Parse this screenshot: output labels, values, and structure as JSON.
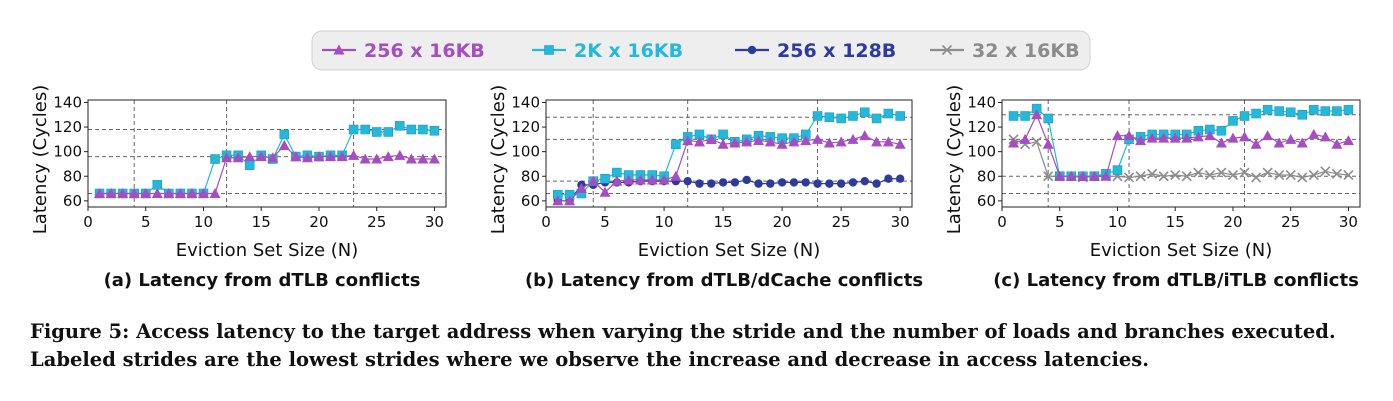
{
  "legend": {
    "items": [
      {
        "label": "256 x 16KB",
        "color": "#a64dc1",
        "marker": "triangle"
      },
      {
        "label": "2K x 16KB",
        "color": "#22b9dc",
        "marker": "square"
      },
      {
        "label": "256 x 128B",
        "color": "#2d3a9e",
        "marker": "circle"
      },
      {
        "label": "32 x 16KB",
        "color": "#8c8c8c",
        "marker": "x"
      }
    ]
  },
  "caption": {
    "label": "Figure 5:",
    "text": "Access latency to the target address when varying the stride and the number of loads and branches executed. Labeled strides are the lowest strides where we observe the increase and decrease in access latencies."
  },
  "chart_data": [
    {
      "type": "line",
      "panel_label": "(a) Latency from dTLB conflicts",
      "xlabel": "Eviction Set Size (N)",
      "ylabel": "Latency (Cycles)",
      "xlim": [
        0,
        31
      ],
      "ylim": [
        55,
        142
      ],
      "xticks": [
        0,
        5,
        10,
        15,
        20,
        25,
        30
      ],
      "yticks": [
        60,
        80,
        100,
        120,
        140
      ],
      "vlines": [
        4,
        12,
        23
      ],
      "hlines": [
        66,
        96,
        118
      ],
      "series": [
        {
          "name": "256 x 16KB",
          "x": [
            1,
            2,
            3,
            4,
            5,
            6,
            7,
            8,
            9,
            10,
            11,
            12,
            13,
            14,
            15,
            16,
            17,
            18,
            19,
            20,
            21,
            22,
            23,
            24,
            25,
            26,
            27,
            28,
            29,
            30
          ],
          "values": [
            66,
            66,
            66,
            66,
            66,
            66,
            66,
            66,
            66,
            66,
            66,
            95,
            95,
            96,
            96,
            95,
            105,
            96,
            95,
            96,
            96,
            96,
            97,
            94,
            94,
            96,
            97,
            94,
            94,
            94
          ]
        },
        {
          "name": "2K x 16KB",
          "x": [
            1,
            2,
            3,
            4,
            5,
            6,
            7,
            8,
            9,
            10,
            11,
            12,
            13,
            14,
            15,
            16,
            17,
            18,
            19,
            20,
            21,
            22,
            23,
            24,
            25,
            26,
            27,
            28,
            29,
            30
          ],
          "values": [
            66,
            66,
            66,
            66,
            66,
            73,
            66,
            66,
            66,
            66,
            94,
            97,
            97,
            89,
            97,
            94,
            114,
            96,
            97,
            96,
            97,
            97,
            118,
            118,
            116,
            116,
            121,
            118,
            118,
            117
          ]
        }
      ]
    },
    {
      "type": "line",
      "panel_label": "(b) Latency from dTLB/dCache conflicts",
      "xlabel": "Eviction Set Size (N)",
      "ylabel": "Latency (Cycles)",
      "xlim": [
        0,
        31
      ],
      "ylim": [
        55,
        142
      ],
      "xticks": [
        0,
        5,
        10,
        15,
        20,
        25,
        30
      ],
      "yticks": [
        60,
        80,
        100,
        120,
        140
      ],
      "vlines": [
        4,
        12,
        23
      ],
      "hlines": [
        66,
        76,
        110,
        128
      ],
      "series": [
        {
          "name": "256 x 16KB",
          "x": [
            1,
            2,
            3,
            4,
            5,
            6,
            7,
            8,
            9,
            10,
            11,
            12,
            13,
            14,
            15,
            16,
            17,
            18,
            19,
            20,
            21,
            22,
            23,
            24,
            25,
            26,
            27,
            28,
            29,
            30
          ],
          "values": [
            60,
            60,
            70,
            76,
            67,
            76,
            77,
            77,
            77,
            77,
            80,
            109,
            108,
            110,
            106,
            107,
            108,
            109,
            108,
            106,
            108,
            109,
            110,
            107,
            108,
            110,
            113,
            108,
            108,
            106
          ]
        },
        {
          "name": "2K x 16KB",
          "x": [
            1,
            2,
            3,
            4,
            5,
            6,
            7,
            8,
            9,
            10,
            11,
            12,
            13,
            14,
            15,
            16,
            17,
            18,
            19,
            20,
            21,
            22,
            23,
            24,
            25,
            26,
            27,
            28,
            29,
            30
          ],
          "values": [
            65,
            65,
            66,
            76,
            78,
            83,
            81,
            81,
            81,
            80,
            106,
            112,
            114,
            110,
            114,
            108,
            110,
            113,
            112,
            111,
            111,
            114,
            129,
            128,
            127,
            129,
            132,
            127,
            131,
            129
          ]
        },
        {
          "name": "256 x 128B",
          "x": [
            1,
            2,
            3,
            4,
            5,
            6,
            7,
            8,
            9,
            10,
            11,
            12,
            13,
            14,
            15,
            16,
            17,
            18,
            19,
            20,
            21,
            22,
            23,
            24,
            25,
            26,
            27,
            28,
            29,
            30
          ],
          "values": [
            60,
            60,
            73,
            73,
            75,
            75,
            75,
            76,
            76,
            76,
            76,
            76,
            74,
            74,
            75,
            75,
            77,
            74,
            74,
            75,
            75,
            75,
            74,
            74,
            74,
            75,
            76,
            74,
            78,
            78
          ]
        }
      ]
    },
    {
      "type": "line",
      "panel_label": "(c) Latency from dTLB/iTLB conflicts",
      "xlabel": "Eviction Set Size (N)",
      "ylabel": "Latency (Cycles)",
      "xlim": [
        0,
        31
      ],
      "ylim": [
        55,
        142
      ],
      "xticks": [
        0,
        5,
        10,
        15,
        20,
        25,
        30
      ],
      "yticks": [
        60,
        80,
        100,
        120,
        140
      ],
      "vlines": [
        4,
        11,
        21
      ],
      "hlines": [
        66,
        80,
        110,
        130
      ],
      "series": [
        {
          "name": "256 x 16KB",
          "x": [
            1,
            2,
            3,
            4,
            5,
            6,
            7,
            8,
            9,
            10,
            11,
            12,
            13,
            14,
            15,
            16,
            17,
            18,
            19,
            20,
            21,
            22,
            23,
            24,
            25,
            26,
            27,
            28,
            29,
            30
          ],
          "values": [
            107,
            110,
            130,
            106,
            80,
            80,
            80,
            80,
            80,
            113,
            113,
            109,
            111,
            111,
            111,
            111,
            112,
            113,
            107,
            111,
            112,
            106,
            113,
            107,
            110,
            107,
            114,
            112,
            106,
            109
          ]
        },
        {
          "name": "2K x 16KB",
          "x": [
            1,
            2,
            3,
            4,
            5,
            6,
            7,
            8,
            9,
            10,
            11,
            12,
            13,
            14,
            15,
            16,
            17,
            18,
            19,
            20,
            21,
            22,
            23,
            24,
            25,
            26,
            27,
            28,
            29,
            30
          ],
          "values": [
            129,
            129,
            135,
            127,
            80,
            80,
            80,
            80,
            82,
            85,
            110,
            112,
            114,
            114,
            114,
            114,
            117,
            118,
            117,
            125,
            129,
            131,
            134,
            133,
            132,
            130,
            134,
            133,
            133,
            134
          ]
        },
        {
          "name": "32 x 16KB",
          "x": [
            1,
            2,
            3,
            4,
            5,
            6,
            7,
            8,
            9,
            10,
            11,
            12,
            13,
            14,
            15,
            16,
            17,
            18,
            19,
            20,
            21,
            22,
            23,
            24,
            25,
            26,
            27,
            28,
            29,
            30
          ],
          "values": [
            110,
            106,
            108,
            80,
            80,
            80,
            79,
            80,
            80,
            80,
            79,
            80,
            82,
            80,
            81,
            80,
            83,
            81,
            83,
            81,
            83,
            79,
            83,
            81,
            81,
            79,
            81,
            84,
            82,
            81
          ]
        }
      ]
    }
  ]
}
